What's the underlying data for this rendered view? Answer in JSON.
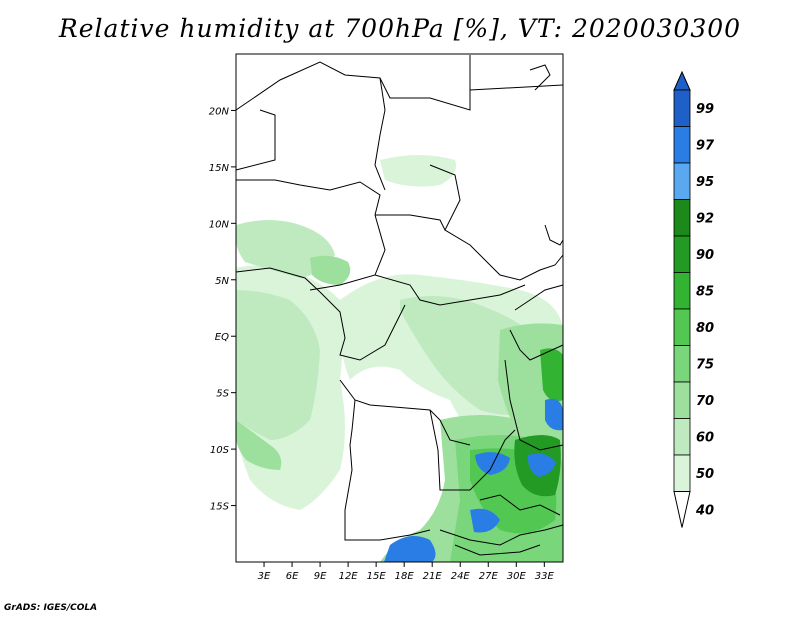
{
  "title": "Relative humidity at 700hPa [%], VT: 2020030300",
  "credit": "GrADS: IGES/COLA",
  "map": {
    "lon_range": [
      0,
      35
    ],
    "lat_range": [
      -20,
      25
    ],
    "lon_ticks": [
      "3E",
      "6E",
      "9E",
      "12E",
      "15E",
      "18E",
      "21E",
      "24E",
      "27E",
      "30E",
      "33E"
    ],
    "lon_tick_values": [
      3,
      6,
      9,
      12,
      15,
      18,
      21,
      24,
      27,
      30,
      33
    ],
    "lat_ticks": [
      "20N",
      "15N",
      "10N",
      "5N",
      "EQ",
      "5S",
      "10S",
      "15S"
    ],
    "lat_tick_values": [
      20,
      15,
      10,
      5,
      0,
      -5,
      -10,
      -15
    ]
  },
  "colorbar": {
    "levels": [
      "99",
      "97",
      "95",
      "92",
      "90",
      "85",
      "80",
      "75",
      "70",
      "60",
      "50",
      "40"
    ],
    "colors": [
      "#1e5fc8",
      "#2b7de6",
      "#5aa8f0",
      "#1b8a1b",
      "#239a23",
      "#32b432",
      "#52c852",
      "#7ad67a",
      "#9de09d",
      "#bfeabf",
      "#daf4da",
      "#effbef"
    ],
    "top_color": "#1e5fc8",
    "bottom_color": "#ffffff"
  }
}
